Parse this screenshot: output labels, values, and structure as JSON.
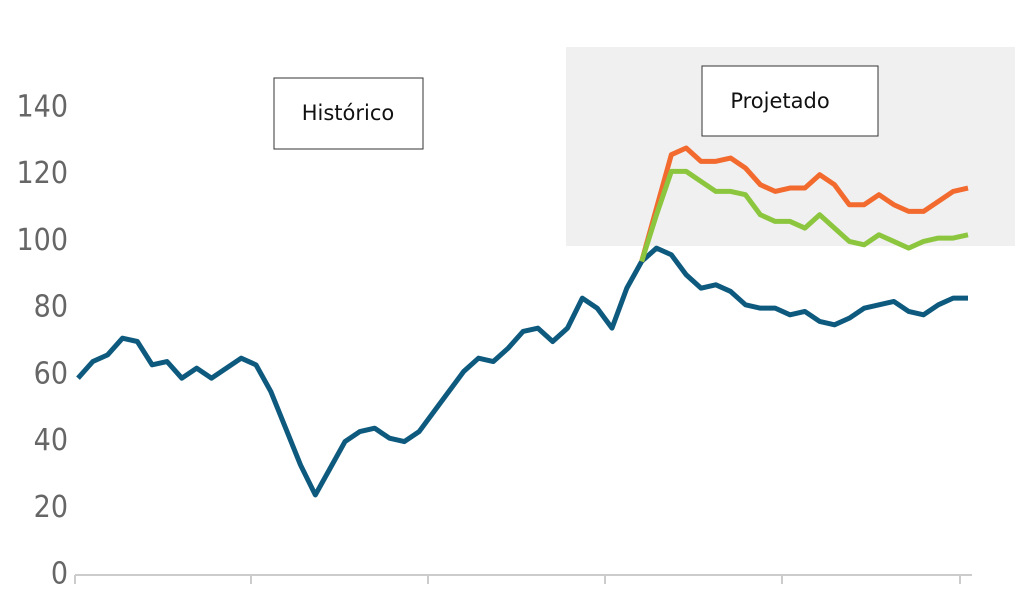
{
  "chart_data": {
    "type": "line",
    "annotations": [
      "Histórico",
      "Projetado"
    ],
    "categories": [
      null,
      null,
      null,
      null,
      null,
      null,
      null,
      null,
      null,
      null,
      null,
      null,
      null,
      null,
      null,
      null,
      null,
      null,
      null,
      null,
      null,
      null,
      null,
      null,
      null,
      null,
      null,
      null,
      null,
      null,
      null,
      null,
      null,
      null,
      null,
      null,
      null,
      null,
      null,
      null,
      null,
      null,
      null,
      null,
      null,
      null,
      null,
      null,
      null,
      null,
      null,
      null,
      null,
      null,
      null,
      null,
      null,
      null,
      null,
      null,
      null
    ],
    "series": [
      {
        "color": "#0e5a7e",
        "values": [
          59,
          64,
          66,
          71,
          70,
          63,
          64,
          59,
          62,
          59,
          62,
          65,
          63,
          55,
          44,
          33,
          24,
          32,
          40,
          43,
          44,
          41,
          40,
          43,
          49,
          55,
          61,
          65,
          64,
          68,
          73,
          74,
          70,
          74,
          83,
          80,
          74,
          86,
          94,
          98,
          96,
          90,
          86,
          87,
          85,
          81,
          80,
          80,
          78,
          79,
          76,
          75,
          77,
          80,
          81,
          82,
          79,
          78,
          81,
          83,
          83
        ]
      },
      {
        "color": "#f26a2e",
        "values": [
          null,
          null,
          null,
          null,
          null,
          null,
          null,
          null,
          null,
          null,
          null,
          null,
          null,
          null,
          null,
          null,
          null,
          null,
          null,
          null,
          null,
          null,
          null,
          null,
          null,
          null,
          null,
          null,
          null,
          null,
          null,
          null,
          null,
          null,
          null,
          null,
          null,
          null,
          94,
          110,
          126,
          128,
          124,
          124,
          125,
          122,
          117,
          115,
          116,
          116,
          120,
          117,
          111,
          111,
          114,
          111,
          109,
          109,
          112,
          115,
          116
        ]
      },
      {
        "color": "#8cc63f",
        "values": [
          null,
          null,
          null,
          null,
          null,
          null,
          null,
          null,
          null,
          null,
          null,
          null,
          null,
          null,
          null,
          null,
          null,
          null,
          null,
          null,
          null,
          null,
          null,
          null,
          null,
          null,
          null,
          null,
          null,
          null,
          null,
          null,
          null,
          null,
          null,
          null,
          null,
          null,
          94,
          108,
          121,
          121,
          118,
          115,
          115,
          114,
          108,
          106,
          106,
          104,
          108,
          104,
          100,
          99,
          102,
          100,
          98,
          100,
          101,
          101,
          102
        ]
      }
    ],
    "ylim": [
      0,
      140
    ],
    "yticks": [
      0,
      20,
      40,
      60,
      80,
      100,
      120,
      140
    ]
  }
}
